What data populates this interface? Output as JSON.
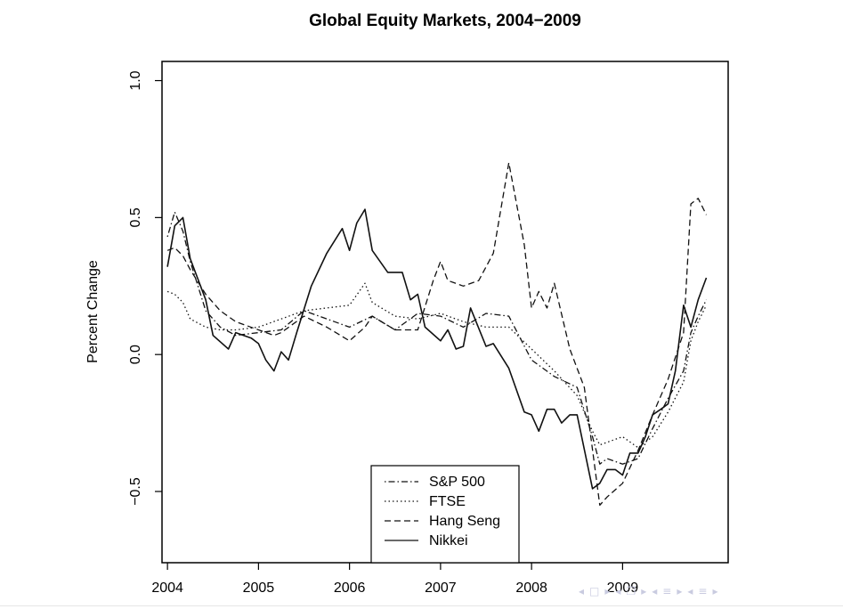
{
  "chart_data": {
    "type": "line",
    "title": "Global Equity Markets, 2004−2009",
    "xlabel": "",
    "ylabel": "Percent Change",
    "xlim": [
      2003.94,
      2010.16
    ],
    "ylim": [
      -0.76,
      1.07
    ],
    "xticks": [
      2004,
      2005,
      2006,
      2007,
      2008,
      2009
    ],
    "xtick_labels": [
      "2004",
      "2005",
      "2006",
      "2007",
      "2008",
      "2009"
    ],
    "yticks": [
      -0.5,
      0.0,
      0.5,
      1.0
    ],
    "ytick_labels": [
      "−0.5",
      "0.0",
      "0.5",
      "1.0"
    ],
    "grid": false,
    "legend_position": "bottom-center",
    "series": [
      {
        "name": "S&P 500",
        "style": "dotdash",
        "x": [
          2004.0,
          2004.08,
          2004.17,
          2004.25,
          2004.42,
          2004.58,
          2004.75,
          2005.0,
          2005.25,
          2005.5,
          2005.75,
          2006.0,
          2006.25,
          2006.5,
          2006.75,
          2007.0,
          2007.25,
          2007.5,
          2007.75,
          2008.0,
          2008.25,
          2008.5,
          2008.67,
          2008.75,
          2008.83,
          2009.0,
          2009.17,
          2009.33,
          2009.5,
          2009.67,
          2009.75,
          2009.83,
          2009.92
        ],
        "y": [
          0.43,
          0.52,
          0.45,
          0.34,
          0.16,
          0.1,
          0.07,
          0.08,
          0.09,
          0.16,
          0.13,
          0.1,
          0.14,
          0.09,
          0.15,
          0.14,
          0.1,
          0.15,
          0.14,
          -0.02,
          -0.08,
          -0.12,
          -0.3,
          -0.4,
          -0.38,
          -0.4,
          -0.38,
          -0.27,
          -0.16,
          -0.06,
          0.08,
          0.14,
          0.2
        ]
      },
      {
        "name": "FTSE",
        "style": "dotted",
        "x": [
          2004.0,
          2004.08,
          2004.17,
          2004.25,
          2004.42,
          2004.58,
          2004.75,
          2005.0,
          2005.25,
          2005.5,
          2005.75,
          2006.0,
          2006.17,
          2006.25,
          2006.5,
          2006.75,
          2007.0,
          2007.25,
          2007.5,
          2007.75,
          2008.0,
          2008.25,
          2008.5,
          2008.67,
          2008.75,
          2009.0,
          2009.17,
          2009.33,
          2009.5,
          2009.67,
          2009.75,
          2009.83,
          2009.92
        ],
        "y": [
          0.23,
          0.22,
          0.19,
          0.13,
          0.1,
          0.09,
          0.09,
          0.1,
          0.13,
          0.16,
          0.17,
          0.18,
          0.26,
          0.19,
          0.14,
          0.13,
          0.15,
          0.12,
          0.1,
          0.1,
          0.02,
          -0.06,
          -0.15,
          -0.28,
          -0.33,
          -0.3,
          -0.34,
          -0.3,
          -0.21,
          -0.1,
          0.05,
          0.12,
          0.18
        ]
      },
      {
        "name": "Hang Seng",
        "style": "dashed",
        "x": [
          2004.0,
          2004.08,
          2004.17,
          2004.25,
          2004.42,
          2004.58,
          2004.75,
          2005.0,
          2005.17,
          2005.25,
          2005.5,
          2005.75,
          2006.0,
          2006.17,
          2006.25,
          2006.5,
          2006.75,
          2006.92,
          2007.0,
          2007.08,
          2007.25,
          2007.42,
          2007.58,
          2007.75,
          2007.92,
          2008.0,
          2008.08,
          2008.17,
          2008.25,
          2008.42,
          2008.58,
          2008.75,
          2008.83,
          2009.0,
          2009.17,
          2009.33,
          2009.5,
          2009.67,
          2009.75,
          2009.83,
          2009.92
        ],
        "y": [
          0.38,
          0.39,
          0.36,
          0.31,
          0.22,
          0.16,
          0.12,
          0.09,
          0.07,
          0.08,
          0.14,
          0.1,
          0.05,
          0.1,
          0.14,
          0.09,
          0.09,
          0.27,
          0.34,
          0.27,
          0.25,
          0.27,
          0.37,
          0.7,
          0.4,
          0.17,
          0.23,
          0.17,
          0.26,
          0.02,
          -0.12,
          -0.55,
          -0.52,
          -0.47,
          -0.35,
          -0.22,
          -0.09,
          0.08,
          0.55,
          0.57,
          0.51
        ]
      },
      {
        "name": "Nikkei",
        "style": "solid",
        "x": [
          2004.0,
          2004.08,
          2004.17,
          2004.25,
          2004.42,
          2004.5,
          2004.67,
          2004.75,
          2004.92,
          2005.0,
          2005.08,
          2005.17,
          2005.25,
          2005.33,
          2005.42,
          2005.58,
          2005.75,
          2005.92,
          2006.0,
          2006.08,
          2006.17,
          2006.25,
          2006.42,
          2006.58,
          2006.67,
          2006.75,
          2006.83,
          2007.0,
          2007.08,
          2007.17,
          2007.25,
          2007.33,
          2007.5,
          2007.58,
          2007.75,
          2007.92,
          2008.0,
          2008.08,
          2008.17,
          2008.25,
          2008.33,
          2008.42,
          2008.5,
          2008.67,
          2008.75,
          2008.83,
          2008.92,
          2009.0,
          2009.08,
          2009.17,
          2009.25,
          2009.33,
          2009.42,
          2009.5,
          2009.58,
          2009.67,
          2009.75,
          2009.83,
          2009.92
        ],
        "y": [
          0.32,
          0.47,
          0.5,
          0.35,
          0.2,
          0.07,
          0.02,
          0.08,
          0.06,
          0.04,
          -0.02,
          -0.06,
          0.01,
          -0.02,
          0.08,
          0.25,
          0.37,
          0.46,
          0.38,
          0.48,
          0.53,
          0.38,
          0.3,
          0.3,
          0.2,
          0.22,
          0.1,
          0.05,
          0.09,
          0.02,
          0.03,
          0.17,
          0.03,
          0.04,
          -0.05,
          -0.21,
          -0.22,
          -0.28,
          -0.2,
          -0.2,
          -0.25,
          -0.22,
          -0.22,
          -0.49,
          -0.47,
          -0.42,
          -0.42,
          -0.44,
          -0.36,
          -0.36,
          -0.3,
          -0.22,
          -0.2,
          -0.18,
          -0.06,
          0.18,
          0.1,
          0.2,
          0.28
        ]
      }
    ]
  },
  "nav_icons": [
    "◂",
    "□",
    "▸",
    "◂",
    "❐",
    "▸",
    "◂",
    "≡",
    "▸",
    "◂",
    "≡",
    "▸"
  ]
}
